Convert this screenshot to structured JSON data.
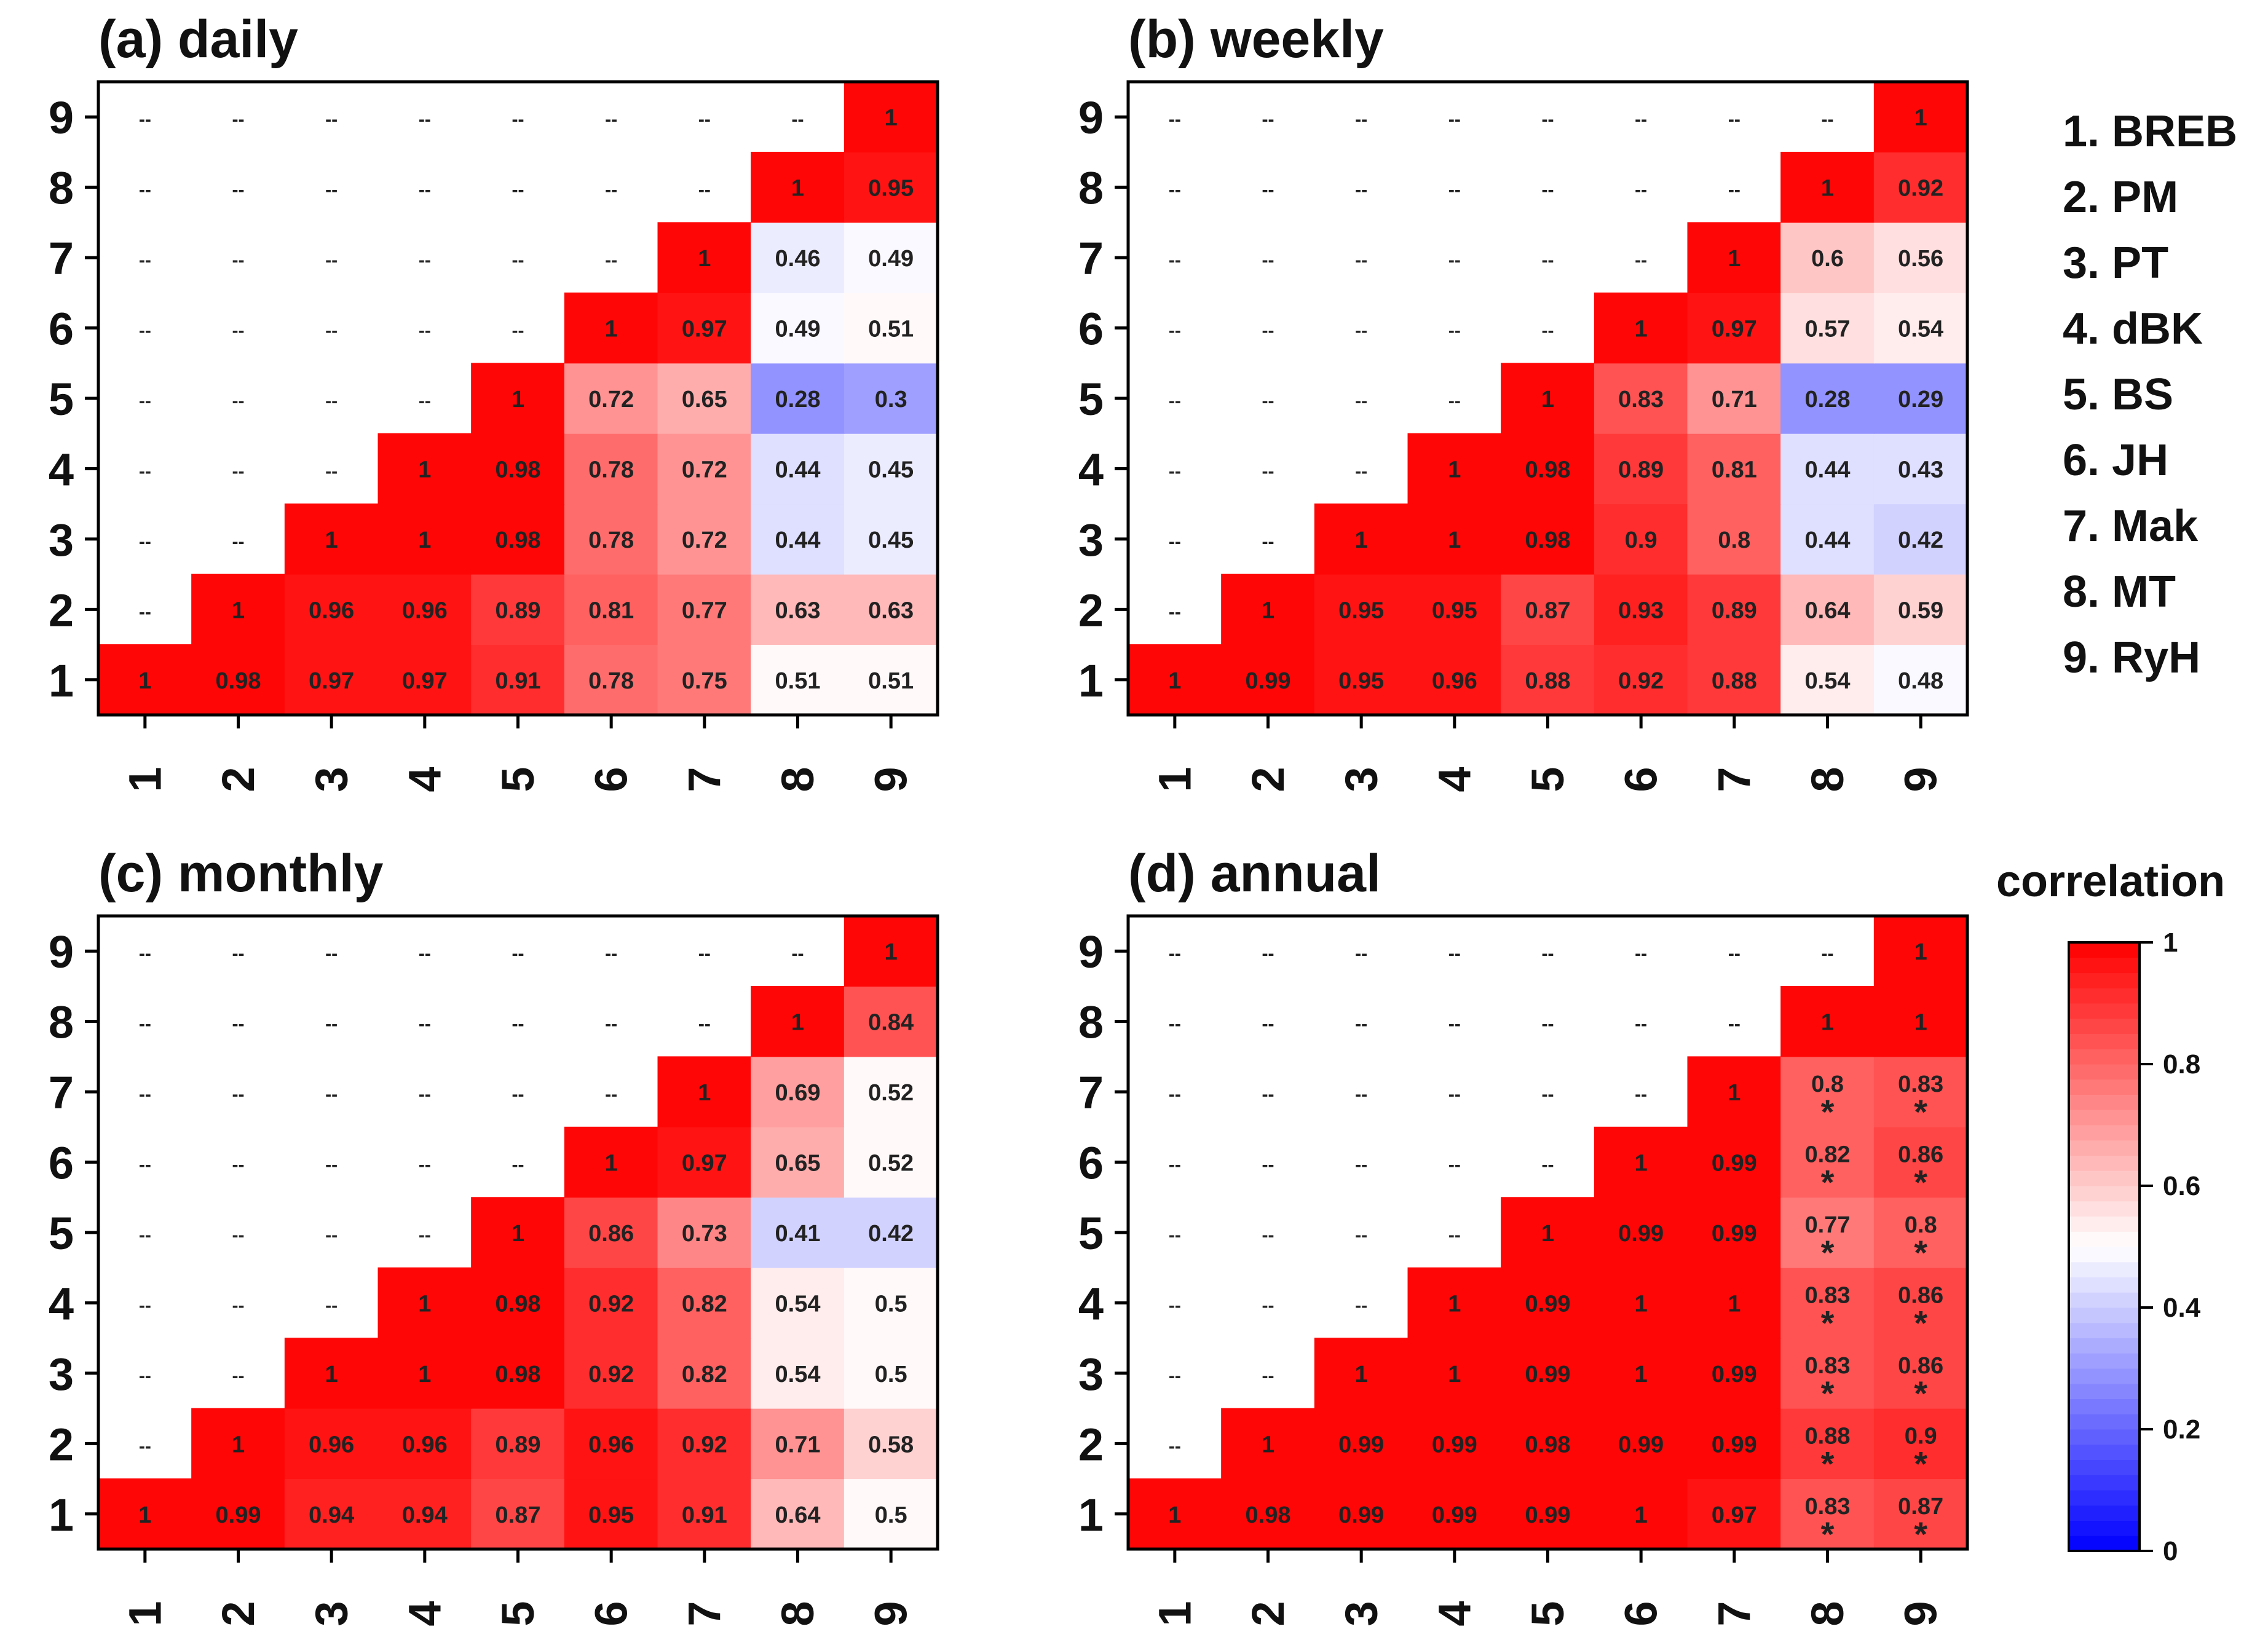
{
  "chart_data": [
    {
      "type": "heatmap",
      "title": "(a) daily",
      "x": [
        "1",
        "2",
        "3",
        "4",
        "5",
        "6",
        "7",
        "8",
        "9"
      ],
      "y": [
        "1",
        "2",
        "3",
        "4",
        "5",
        "6",
        "7",
        "8",
        "9"
      ],
      "empty_label": "--",
      "rows": [
        [
          "1",
          "0.98",
          "0.97",
          "0.97",
          "0.91",
          "0.78",
          "0.75",
          "0.51",
          "0.51"
        ],
        [
          "--",
          "1",
          "0.96",
          "0.96",
          "0.89",
          "0.81",
          "0.77",
          "0.63",
          "0.63"
        ],
        [
          "--",
          "--",
          "1",
          "1",
          "0.98",
          "0.78",
          "0.72",
          "0.44",
          "0.45"
        ],
        [
          "--",
          "--",
          "--",
          "1",
          "0.98",
          "0.78",
          "0.72",
          "0.44",
          "0.45"
        ],
        [
          "--",
          "--",
          "--",
          "--",
          "1",
          "0.72",
          "0.65",
          "0.28",
          "0.3"
        ],
        [
          "--",
          "--",
          "--",
          "--",
          "--",
          "1",
          "0.97",
          "0.49",
          "0.51"
        ],
        [
          "--",
          "--",
          "--",
          "--",
          "--",
          "--",
          "1",
          "0.46",
          "0.49"
        ],
        [
          "--",
          "--",
          "--",
          "--",
          "--",
          "--",
          "--",
          "1",
          "0.95"
        ],
        [
          "--",
          "--",
          "--",
          "--",
          "--",
          "--",
          "--",
          "--",
          "1"
        ]
      ],
      "significant": []
    },
    {
      "type": "heatmap",
      "title": "(b) weekly",
      "x": [
        "1",
        "2",
        "3",
        "4",
        "5",
        "6",
        "7",
        "8",
        "9"
      ],
      "y": [
        "1",
        "2",
        "3",
        "4",
        "5",
        "6",
        "7",
        "8",
        "9"
      ],
      "empty_label": "--",
      "rows": [
        [
          "1",
          "0.99",
          "0.95",
          "0.96",
          "0.88",
          "0.92",
          "0.88",
          "0.54",
          "0.48"
        ],
        [
          "--",
          "1",
          "0.95",
          "0.95",
          "0.87",
          "0.93",
          "0.89",
          "0.64",
          "0.59"
        ],
        [
          "--",
          "--",
          "1",
          "1",
          "0.98",
          "0.9",
          "0.8",
          "0.44",
          "0.42"
        ],
        [
          "--",
          "--",
          "--",
          "1",
          "0.98",
          "0.89",
          "0.81",
          "0.44",
          "0.43"
        ],
        [
          "--",
          "--",
          "--",
          "--",
          "1",
          "0.83",
          "0.71",
          "0.28",
          "0.29"
        ],
        [
          "--",
          "--",
          "--",
          "--",
          "--",
          "1",
          "0.97",
          "0.57",
          "0.54"
        ],
        [
          "--",
          "--",
          "--",
          "--",
          "--",
          "--",
          "1",
          "0.6",
          "0.56"
        ],
        [
          "--",
          "--",
          "--",
          "--",
          "--",
          "--",
          "--",
          "1",
          "0.92"
        ],
        [
          "--",
          "--",
          "--",
          "--",
          "--",
          "--",
          "--",
          "--",
          "1"
        ]
      ],
      "significant": []
    },
    {
      "type": "heatmap",
      "title": "(c) monthly",
      "x": [
        "1",
        "2",
        "3",
        "4",
        "5",
        "6",
        "7",
        "8",
        "9"
      ],
      "y": [
        "1",
        "2",
        "3",
        "4",
        "5",
        "6",
        "7",
        "8",
        "9"
      ],
      "empty_label": "--",
      "rows": [
        [
          "1",
          "0.99",
          "0.94",
          "0.94",
          "0.87",
          "0.95",
          "0.91",
          "0.64",
          "0.5"
        ],
        [
          "--",
          "1",
          "0.96",
          "0.96",
          "0.89",
          "0.96",
          "0.92",
          "0.71",
          "0.58"
        ],
        [
          "--",
          "--",
          "1",
          "1",
          "0.98",
          "0.92",
          "0.82",
          "0.54",
          "0.5"
        ],
        [
          "--",
          "--",
          "--",
          "1",
          "0.98",
          "0.92",
          "0.82",
          "0.54",
          "0.5"
        ],
        [
          "--",
          "--",
          "--",
          "--",
          "1",
          "0.86",
          "0.73",
          "0.41",
          "0.42"
        ],
        [
          "--",
          "--",
          "--",
          "--",
          "--",
          "1",
          "0.97",
          "0.65",
          "0.52"
        ],
        [
          "--",
          "--",
          "--",
          "--",
          "--",
          "--",
          "1",
          "0.69",
          "0.52"
        ],
        [
          "--",
          "--",
          "--",
          "--",
          "--",
          "--",
          "--",
          "1",
          "0.84"
        ],
        [
          "--",
          "--",
          "--",
          "--",
          "--",
          "--",
          "--",
          "--",
          "1"
        ]
      ],
      "significant": []
    },
    {
      "type": "heatmap",
      "title": "(d) annual",
      "x": [
        "1",
        "2",
        "3",
        "4",
        "5",
        "6",
        "7",
        "8",
        "9"
      ],
      "y": [
        "1",
        "2",
        "3",
        "4",
        "5",
        "6",
        "7",
        "8",
        "9"
      ],
      "empty_label": "--",
      "rows": [
        [
          "1",
          "0.98",
          "0.99",
          "0.99",
          "0.99",
          "1",
          "0.97",
          "0.83",
          "0.87"
        ],
        [
          "--",
          "1",
          "0.99",
          "0.99",
          "0.98",
          "0.99",
          "0.99",
          "0.88",
          "0.9"
        ],
        [
          "--",
          "--",
          "1",
          "1",
          "0.99",
          "1",
          "0.99",
          "0.83",
          "0.86"
        ],
        [
          "--",
          "--",
          "--",
          "1",
          "0.99",
          "1",
          "1",
          "0.83",
          "0.86"
        ],
        [
          "--",
          "--",
          "--",
          "--",
          "1",
          "0.99",
          "0.99",
          "0.77",
          "0.8"
        ],
        [
          "--",
          "--",
          "--",
          "--",
          "--",
          "1",
          "0.99",
          "0.82",
          "0.86"
        ],
        [
          "--",
          "--",
          "--",
          "--",
          "--",
          "--",
          "1",
          "0.8",
          "0.83"
        ],
        [
          "--",
          "--",
          "--",
          "--",
          "--",
          "--",
          "--",
          "1",
          "1"
        ],
        [
          "--",
          "--",
          "--",
          "--",
          "--",
          "--",
          "--",
          "--",
          "1"
        ]
      ],
      "significant": [
        [
          1,
          8
        ],
        [
          1,
          9
        ],
        [
          2,
          8
        ],
        [
          2,
          9
        ],
        [
          3,
          8
        ],
        [
          3,
          9
        ],
        [
          4,
          8
        ],
        [
          4,
          9
        ],
        [
          5,
          8
        ],
        [
          5,
          9
        ],
        [
          6,
          8
        ],
        [
          6,
          9
        ],
        [
          7,
          8
        ],
        [
          7,
          9
        ]
      ],
      "significance_marker": "*"
    }
  ],
  "legend": {
    "items": [
      "1. BREB",
      "2. PM",
      "3. PT",
      "4. dBK",
      "5. BS",
      "6. JH",
      "7. Mak",
      "8. MT",
      "9. RyH"
    ]
  },
  "colorbar": {
    "title": "correlation",
    "ticks": [
      "0",
      "0.2",
      "0.4",
      "0.6",
      "0.8",
      "1"
    ],
    "range": [
      0,
      1
    ],
    "colors": {
      "low": "#0000ff",
      "mid": "#ffffff",
      "high": "#ff0000"
    }
  }
}
